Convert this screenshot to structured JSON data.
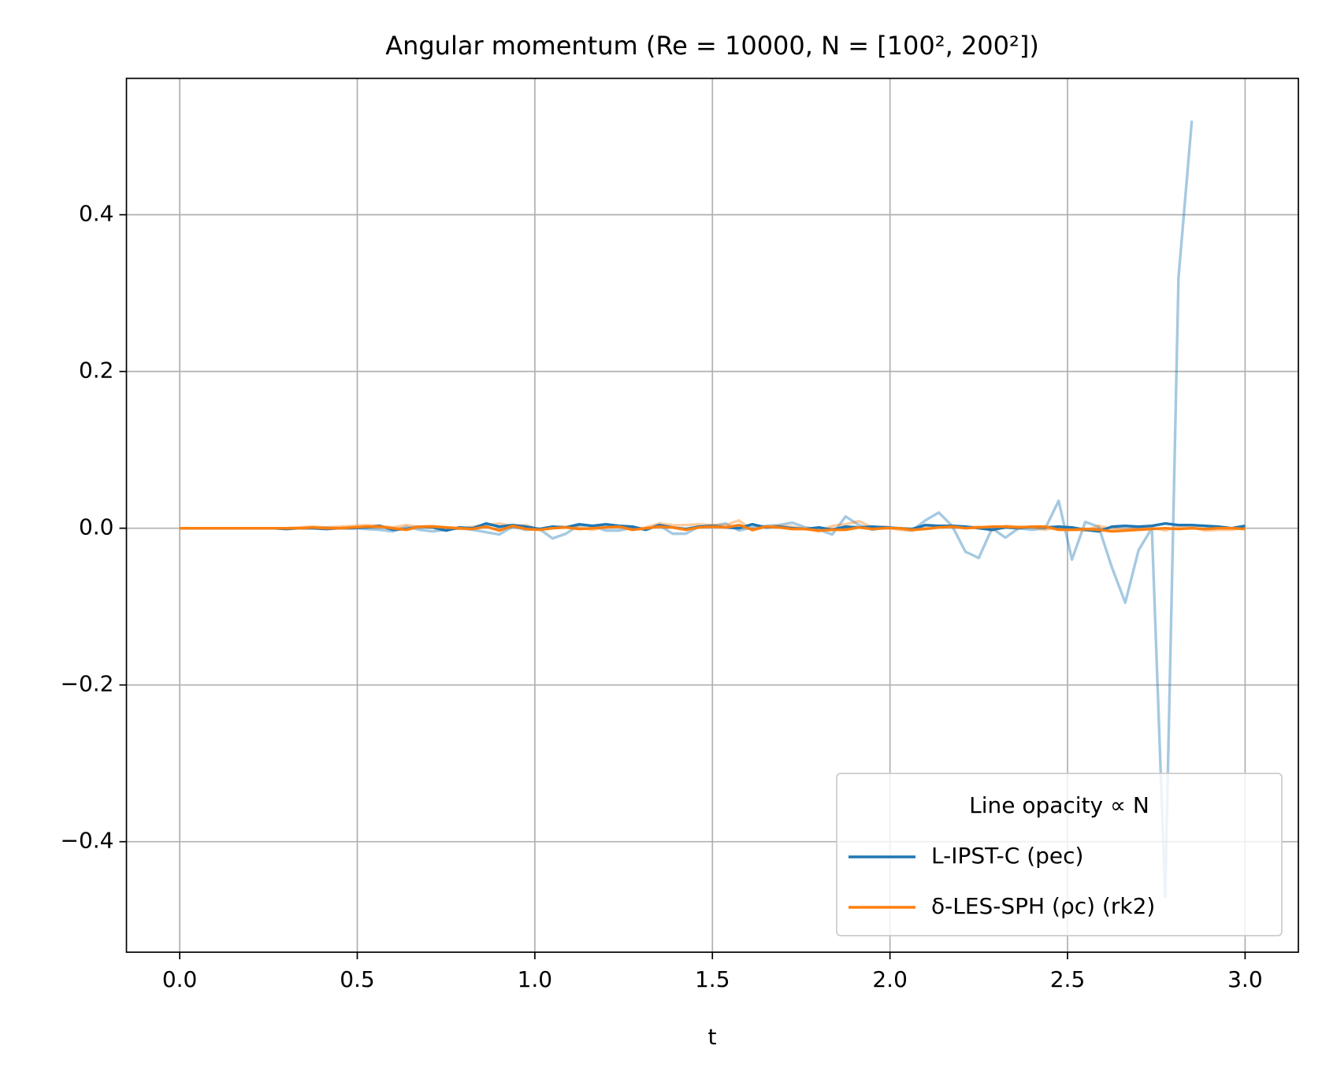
{
  "chart_data": {
    "type": "line",
    "title": "Angular momentum  (Re = 10000, N = [100², 200²])",
    "xlabel": "t",
    "legend_title": "Line opacity  ∝  N",
    "legend_loc": "lower right",
    "grid": true,
    "xlim": [
      -0.15,
      3.15
    ],
    "ylim": [
      -0.541,
      0.574
    ],
    "xticks": [
      {
        "value": 0,
        "label": "0.0"
      },
      {
        "value": 0.5,
        "label": "0.5"
      },
      {
        "value": 1,
        "label": "1.0"
      },
      {
        "value": 1.5,
        "label": "1.5"
      },
      {
        "value": 2,
        "label": "2.0"
      },
      {
        "value": 2.5,
        "label": "2.5"
      },
      {
        "value": 3,
        "label": "3.0"
      }
    ],
    "yticks": [
      {
        "value": -0.4,
        "label": "−0.4"
      },
      {
        "value": -0.2,
        "label": "−0.2"
      },
      {
        "value": 0,
        "label": "0.0"
      },
      {
        "value": 0.2,
        "label": "0.2"
      },
      {
        "value": 0.4,
        "label": "0.4"
      }
    ],
    "x": [
      0,
      0.0375,
      0.075,
      0.1125,
      0.15,
      0.1875,
      0.225,
      0.2625,
      0.3,
      0.3375,
      0.375,
      0.4125,
      0.45,
      0.4875,
      0.525,
      0.5625,
      0.6,
      0.6375,
      0.675,
      0.7125,
      0.75,
      0.7875,
      0.825,
      0.8625,
      0.9,
      0.9375,
      0.975,
      1.0125,
      1.05,
      1.0875,
      1.125,
      1.1625,
      1.2,
      1.2375,
      1.275,
      1.3125,
      1.35,
      1.3875,
      1.425,
      1.4625,
      1.5,
      1.5375,
      1.575,
      1.6125,
      1.65,
      1.6875,
      1.725,
      1.7625,
      1.8,
      1.8375,
      1.875,
      1.9125,
      1.95,
      1.9875,
      2.025,
      2.0625,
      2.1,
      2.1375,
      2.175,
      2.2125,
      2.25,
      2.2875,
      2.325,
      2.3625,
      2.4,
      2.4375,
      2.475,
      2.5125,
      2.55,
      2.5875,
      2.625,
      2.6625,
      2.7,
      2.7375,
      2.775,
      2.8125,
      2.85,
      2.8875,
      2.925,
      2.9625,
      3.0
    ],
    "series": [
      {
        "color": "#1f77b4",
        "opacity": 0.4,
        "values": [
          0,
          0,
          0,
          0,
          0,
          0,
          0,
          0,
          0,
          0,
          0,
          0.001,
          0,
          0.001,
          -0.001,
          -0.002,
          -0.004,
          0.002,
          -0.002,
          -0.004,
          -0.002,
          0,
          -0.002,
          -0.005,
          -0.008,
          0.002,
          -0.002,
          -0.001,
          -0.013,
          -0.007,
          0.004,
          0.003,
          -0.003,
          -0.003,
          0.001,
          -0.002,
          0.004,
          -0.007,
          -0.007,
          0.002,
          0.003,
          0.006,
          -0.003,
          0.001,
          0.003,
          0.004,
          0.007,
          0.001,
          -0.002,
          -0.008,
          0.015,
          0.004,
          -0.002,
          0.001,
          0,
          -0.003,
          0.01,
          0.02,
          0.003,
          -0.03,
          -0.038,
          0,
          -0.012,
          0,
          -0.002,
          0,
          0.035,
          -0.04,
          0.008,
          0.002,
          -0.05,
          -0.095,
          -0.028,
          0,
          -0.47,
          0.32,
          0.52,
          null,
          null,
          null,
          null
        ]
      },
      {
        "color": "#ff7f0e",
        "opacity": 0.4,
        "values": [
          0,
          0,
          0,
          0,
          0,
          0,
          0,
          0,
          0,
          0.001,
          0.002,
          0.001,
          0.002,
          0.003,
          0.004,
          0.003,
          0.001,
          0.004,
          0.002,
          0.003,
          0.001,
          -0.001,
          0.002,
          0.004,
          0.006,
          0.003,
          0.004,
          -0.002,
          0.001,
          0.002,
          0.001,
          -0.002,
          0.002,
          0.003,
          -0.002,
          0.001,
          0.006,
          0.004,
          0.004,
          0.005,
          0.004,
          0.004,
          0.01,
          -0.003,
          0.002,
          0.003,
          0.002,
          -0.001,
          -0.004,
          0.003,
          0.005,
          0.009,
          0.001,
          0.002,
          -0.002,
          -0.003,
          0,
          0.002,
          0.003,
          0.001,
          0.002,
          -0.003,
          0.003,
          0.002,
          0.001,
          -0.002,
          0.002,
          -0.002,
          -0.003,
          0.003,
          -0.001,
          -0.002,
          0,
          0.001,
          -0.003,
          0.002,
          0.001,
          -0.003,
          -0.002,
          -0.002,
          0.002
        ]
      },
      {
        "name": "L-IPST-C (pec)",
        "color": "#1f77b4",
        "opacity": 1,
        "values": [
          0,
          0,
          0,
          0,
          0,
          0,
          0,
          0,
          -0.001,
          0,
          0,
          -0.001,
          0,
          0,
          0.001,
          0.003,
          -0.002,
          -0.001,
          0.002,
          0.001,
          -0.003,
          0.001,
          0,
          0.006,
          0.002,
          0.004,
          0.002,
          -0.001,
          0.002,
          0.001,
          0.005,
          0.003,
          0.005,
          0.003,
          0.002,
          -0.002,
          0.004,
          0.001,
          -0.001,
          0.002,
          0.003,
          0.001,
          0,
          0.005,
          0.001,
          0.002,
          0,
          -0.001,
          0.001,
          -0.002,
          0.002,
          0.001,
          0.002,
          0.001,
          0,
          -0.001,
          0.004,
          0.003,
          0.003,
          0.002,
          0,
          -0.002,
          0.001,
          0,
          0.002,
          0.001,
          0.002,
          0.001,
          -0.002,
          -0.004,
          0.002,
          0.003,
          0.002,
          0.003,
          0.006,
          0.004,
          0.004,
          0.003,
          0.002,
          0,
          0.003
        ]
      },
      {
        "name": "δ-LES-SPH (ρc) (rk2)",
        "color": "#ff7f0e",
        "opacity": 1,
        "values": [
          0,
          0,
          0,
          0,
          0,
          0,
          0,
          0,
          0,
          0,
          0.001,
          0,
          0,
          0.001,
          0.002,
          0.002,
          0,
          -0.002,
          0.002,
          0.002,
          0.001,
          0,
          -0.001,
          0.002,
          -0.003,
          0.003,
          -0.001,
          -0.002,
          0,
          0.001,
          -0.001,
          0,
          0.001,
          0.002,
          -0.002,
          0,
          0.002,
          0.001,
          -0.002,
          0.001,
          0.002,
          0.001,
          0.004,
          -0.002,
          0.002,
          0.001,
          -0.001,
          -0.001,
          -0.003,
          -0.002,
          -0.002,
          0.001,
          -0.001,
          0,
          0,
          -0.002,
          -0.001,
          0.001,
          0.002,
          0,
          0.001,
          0.002,
          0.002,
          0.001,
          0.002,
          0.002,
          -0.002,
          -0.002,
          -0.001,
          -0.002,
          -0.004,
          -0.003,
          -0.002,
          -0.001,
          0,
          -0.001,
          0,
          -0.001,
          0,
          0,
          -0.001
        ]
      }
    ]
  }
}
